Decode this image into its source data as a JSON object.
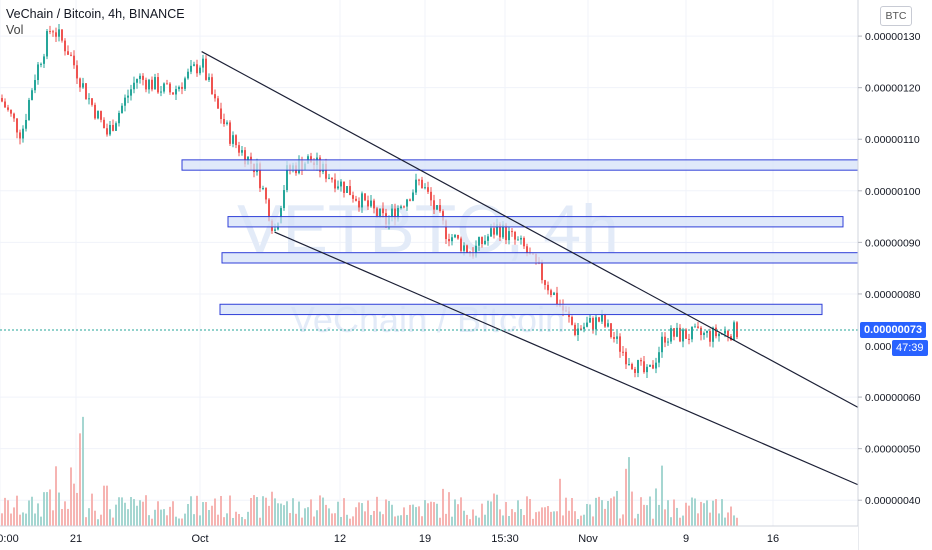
{
  "header": {
    "title": "VeChain / Bitcoin, 4h, BINANCE",
    "vol_label": "Vol",
    "currency_button": "BTC"
  },
  "watermark": {
    "symbol": "VETBTC, 4h",
    "name": "VeChain / Bitcoin"
  },
  "price_axis": {
    "labels": [
      "0.00000130",
      "0.00000120",
      "0.00000110",
      "0.00000100",
      "0.00000090",
      "0.00000080",
      "0.00000060",
      "0.00000050",
      "0.00000040"
    ],
    "current_price": "0.00000073",
    "partial_label": "0.000",
    "countdown": "47:39"
  },
  "time_axis": {
    "labels": [
      "0:00",
      "21",
      "Oct",
      "12",
      "19",
      "15:30",
      "Nov",
      "9",
      "16"
    ]
  },
  "colors": {
    "up": "#26a69a",
    "down": "#ef5350",
    "vol_up": "#a5d6d1",
    "vol_down": "#f6b4b2",
    "zone_fill": "#d6e2f8",
    "zone_stroke": "#2f3fd8",
    "trendline": "#1c2036",
    "current_line": "#26a69a",
    "badge": "#2962ff"
  },
  "chart_data": {
    "type": "candlestick",
    "title": "VeChain / Bitcoin, 4h, BINANCE",
    "ylim": [
      3.5e-07,
      1.37e-06
    ],
    "yticks": [
      1.3e-06,
      1.2e-06,
      1.1e-06,
      1e-06,
      9e-07,
      8e-07,
      6e-07,
      5e-07,
      4e-07
    ],
    "current_price": 7.3e-07,
    "price_path": [
      {
        "t": 0,
        "p": 1.18e-06
      },
      {
        "t": 0.025,
        "p": 1.11e-06
      },
      {
        "t": 0.04,
        "p": 1.22e-06
      },
      {
        "t": 0.06,
        "p": 1.32e-06
      },
      {
        "t": 0.08,
        "p": 1.27e-06
      },
      {
        "t": 0.1,
        "p": 1.19e-06
      },
      {
        "t": 0.125,
        "p": 1.11e-06
      },
      {
        "t": 0.16,
        "p": 1.22e-06
      },
      {
        "t": 0.2,
        "p": 1.19e-06
      },
      {
        "t": 0.235,
        "p": 1.25e-06
      },
      {
        "t": 0.25,
        "p": 1.17e-06
      },
      {
        "t": 0.27,
        "p": 1.1e-06
      },
      {
        "t": 0.3,
        "p": 1.04e-06
      },
      {
        "t": 0.32,
        "p": 9.2e-07
      },
      {
        "t": 0.335,
        "p": 1.04e-06
      },
      {
        "t": 0.36,
        "p": 1.06e-06
      },
      {
        "t": 0.4,
        "p": 1.01e-06
      },
      {
        "t": 0.45,
        "p": 9.4e-07
      },
      {
        "t": 0.49,
        "p": 1.02e-06
      },
      {
        "t": 0.52,
        "p": 9.2e-07
      },
      {
        "t": 0.55,
        "p": 8.8e-07
      },
      {
        "t": 0.58,
        "p": 9.3e-07
      },
      {
        "t": 0.61,
        "p": 8.9e-07
      },
      {
        "t": 0.645,
        "p": 8e-07
      },
      {
        "t": 0.67,
        "p": 7.3e-07
      },
      {
        "t": 0.7,
        "p": 7.5e-07
      },
      {
        "t": 0.73,
        "p": 6.8e-07
      },
      {
        "t": 0.755,
        "p": 6.4e-07
      },
      {
        "t": 0.775,
        "p": 7.2e-07
      },
      {
        "t": 0.8,
        "p": 7.2e-07
      },
      {
        "t": 0.83,
        "p": 7.2e-07
      },
      {
        "t": 0.86,
        "p": 7.3e-07
      }
    ],
    "volume_series": [
      {
        "t": 0.06,
        "v": 0.55
      },
      {
        "t": 0.095,
        "v": 1
      },
      {
        "t": 0.12,
        "v": 0.35
      },
      {
        "t": 0.25,
        "v": 0.3
      },
      {
        "t": 0.32,
        "v": 0.45
      },
      {
        "t": 0.37,
        "v": 0.3
      },
      {
        "t": 0.52,
        "v": 0.3
      },
      {
        "t": 0.58,
        "v": 0.25
      },
      {
        "t": 0.65,
        "v": 0.35
      },
      {
        "t": 0.73,
        "v": 0.6
      },
      {
        "t": 0.77,
        "v": 0.45
      }
    ],
    "zones": [
      {
        "from": 1.06e-06,
        "to": 1.04e-06
      },
      {
        "from": 9.5e-07,
        "to": 9.3e-07
      },
      {
        "from": 8.8e-07,
        "to": 8.6e-07
      },
      {
        "from": 7.8e-07,
        "to": 7.6e-07
      }
    ],
    "trendlines": [
      {
        "from": {
          "t": 0.235,
          "p": 1.27e-06
        },
        "to": {
          "t": 1,
          "p": 5.8e-07
        }
      },
      {
        "from": {
          "t": 0.32,
          "p": 9.2e-07
        },
        "to": {
          "t": 1,
          "p": 4.3e-07
        }
      }
    ]
  }
}
